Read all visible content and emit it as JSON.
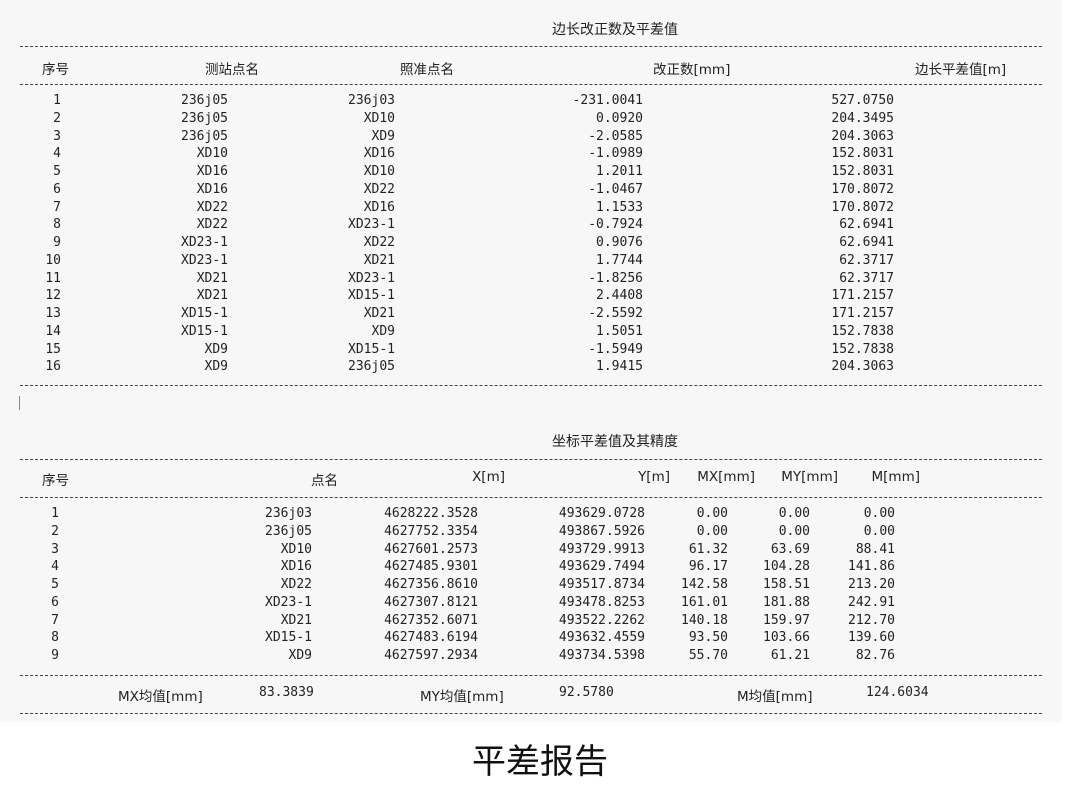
{
  "caption": "平差报告",
  "table1": {
    "title": "边长改正数及平差值",
    "headers": [
      "序号",
      "测站点名",
      "照准点名",
      "改正数[mm]",
      "边长平差值[m]"
    ],
    "rows": [
      [
        "1",
        "236j05",
        "236j03",
        "-231.0041",
        "527.0750"
      ],
      [
        "2",
        "236j05",
        "XD10",
        "0.0920",
        "204.3495"
      ],
      [
        "3",
        "236j05",
        "XD9",
        "-2.0585",
        "204.3063"
      ],
      [
        "4",
        "XD10",
        "XD16",
        "-1.0989",
        "152.8031"
      ],
      [
        "5",
        "XD16",
        "XD10",
        "1.2011",
        "152.8031"
      ],
      [
        "6",
        "XD16",
        "XD22",
        "-1.0467",
        "170.8072"
      ],
      [
        "7",
        "XD22",
        "XD16",
        "1.1533",
        "170.8072"
      ],
      [
        "8",
        "XD22",
        "XD23-1",
        "-0.7924",
        "62.6941"
      ],
      [
        "9",
        "XD23-1",
        "XD22",
        "0.9076",
        "62.6941"
      ],
      [
        "10",
        "XD23-1",
        "XD21",
        "1.7744",
        "62.3717"
      ],
      [
        "11",
        "XD21",
        "XD23-1",
        "-1.8256",
        "62.3717"
      ],
      [
        "12",
        "XD21",
        "XD15-1",
        "2.4408",
        "171.2157"
      ],
      [
        "13",
        "XD15-1",
        "XD21",
        "-2.5592",
        "171.2157"
      ],
      [
        "14",
        "XD15-1",
        "XD9",
        "1.5051",
        "152.7838"
      ],
      [
        "15",
        "XD9",
        "XD15-1",
        "-1.5949",
        "152.7838"
      ],
      [
        "16",
        "XD9",
        "236j05",
        "1.9415",
        "204.3063"
      ]
    ]
  },
  "table2": {
    "title": "坐标平差值及其精度",
    "headers": [
      "序号",
      "点名",
      "X[m]",
      "Y[m]",
      "MX[mm]",
      "MY[mm]",
      "M[mm]"
    ],
    "rows": [
      [
        "1",
        "236j03",
        "4628222.3528",
        "493629.0728",
        "0.00",
        "0.00",
        "0.00"
      ],
      [
        "2",
        "236j05",
        "4627752.3354",
        "493867.5926",
        "0.00",
        "0.00",
        "0.00"
      ],
      [
        "3",
        "XD10",
        "4627601.2573",
        "493729.9913",
        "61.32",
        "63.69",
        "88.41"
      ],
      [
        "4",
        "XD16",
        "4627485.9301",
        "493629.7494",
        "96.17",
        "104.28",
        "141.86"
      ],
      [
        "5",
        "XD22",
        "4627356.8610",
        "493517.8734",
        "142.58",
        "158.51",
        "213.20"
      ],
      [
        "6",
        "XD23-1",
        "4627307.8121",
        "493478.8253",
        "161.01",
        "181.88",
        "242.91"
      ],
      [
        "7",
        "XD21",
        "4627352.6071",
        "493522.2262",
        "140.18",
        "159.97",
        "212.70"
      ],
      [
        "8",
        "XD15-1",
        "4627483.6194",
        "493632.4559",
        "93.50",
        "103.66",
        "139.60"
      ],
      [
        "9",
        "XD9",
        "4627597.2934",
        "493734.5398",
        "55.70",
        "61.21",
        "82.76"
      ]
    ],
    "summary": {
      "mx_label": "MX均值[mm]",
      "mx_value": "83.3839",
      "my_label": "MY均值[mm]",
      "my_value": "92.5780",
      "m_label": "M均值[mm]",
      "m_value": "124.6034"
    }
  }
}
